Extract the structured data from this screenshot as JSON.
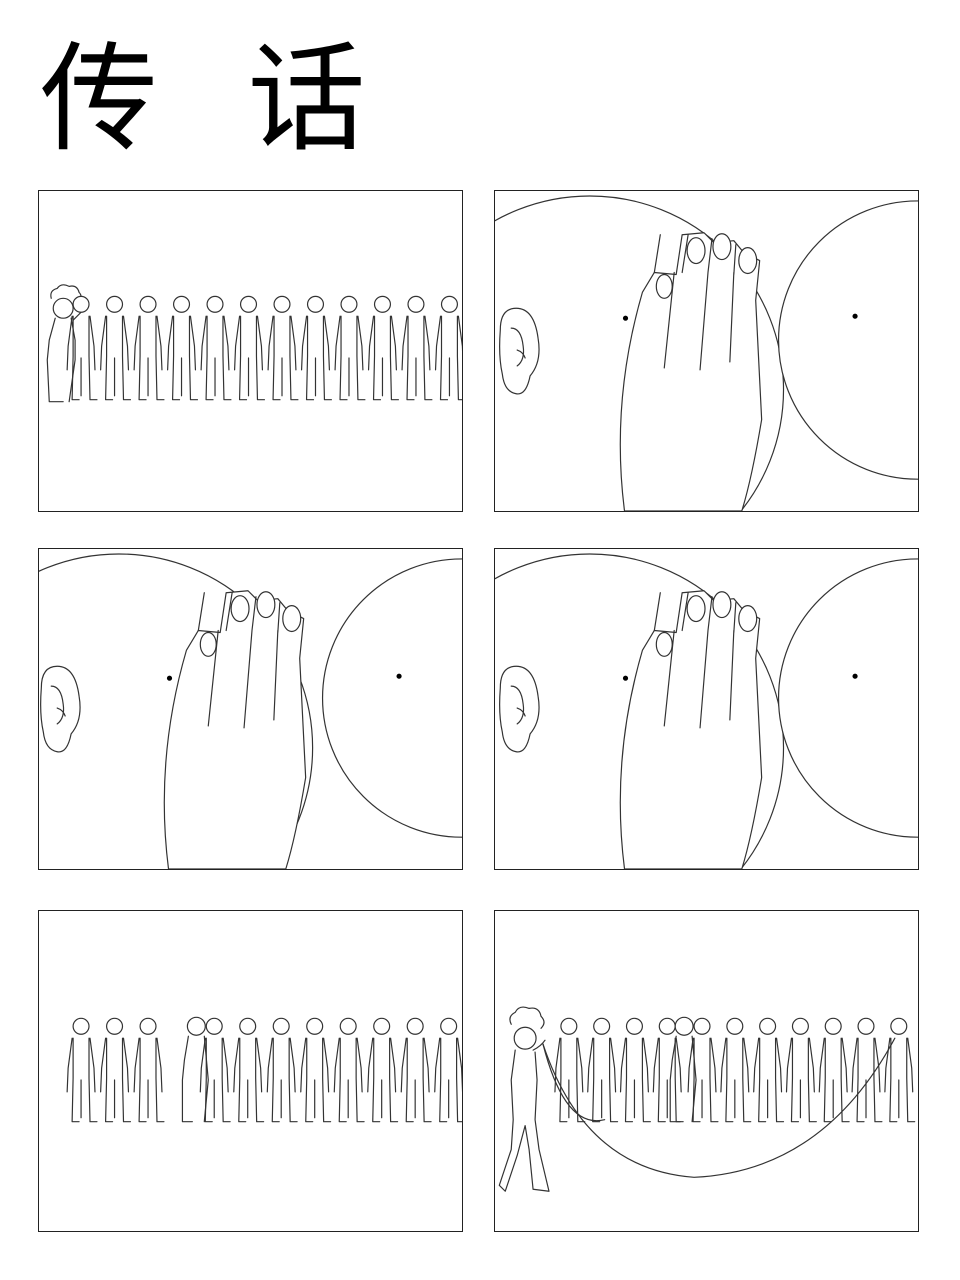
{
  "title": "传 话",
  "panels": [
    {
      "id": "p1",
      "scene": "queue-whisper-start"
    },
    {
      "id": "p2",
      "scene": "whisper-closeup"
    },
    {
      "id": "p3",
      "scene": "whisper-closeup"
    },
    {
      "id": "p4",
      "scene": "whisper-closeup"
    },
    {
      "id": "p5",
      "scene": "queue-whisper-middle"
    },
    {
      "id": "p6",
      "scene": "queue-phone-call"
    }
  ]
}
